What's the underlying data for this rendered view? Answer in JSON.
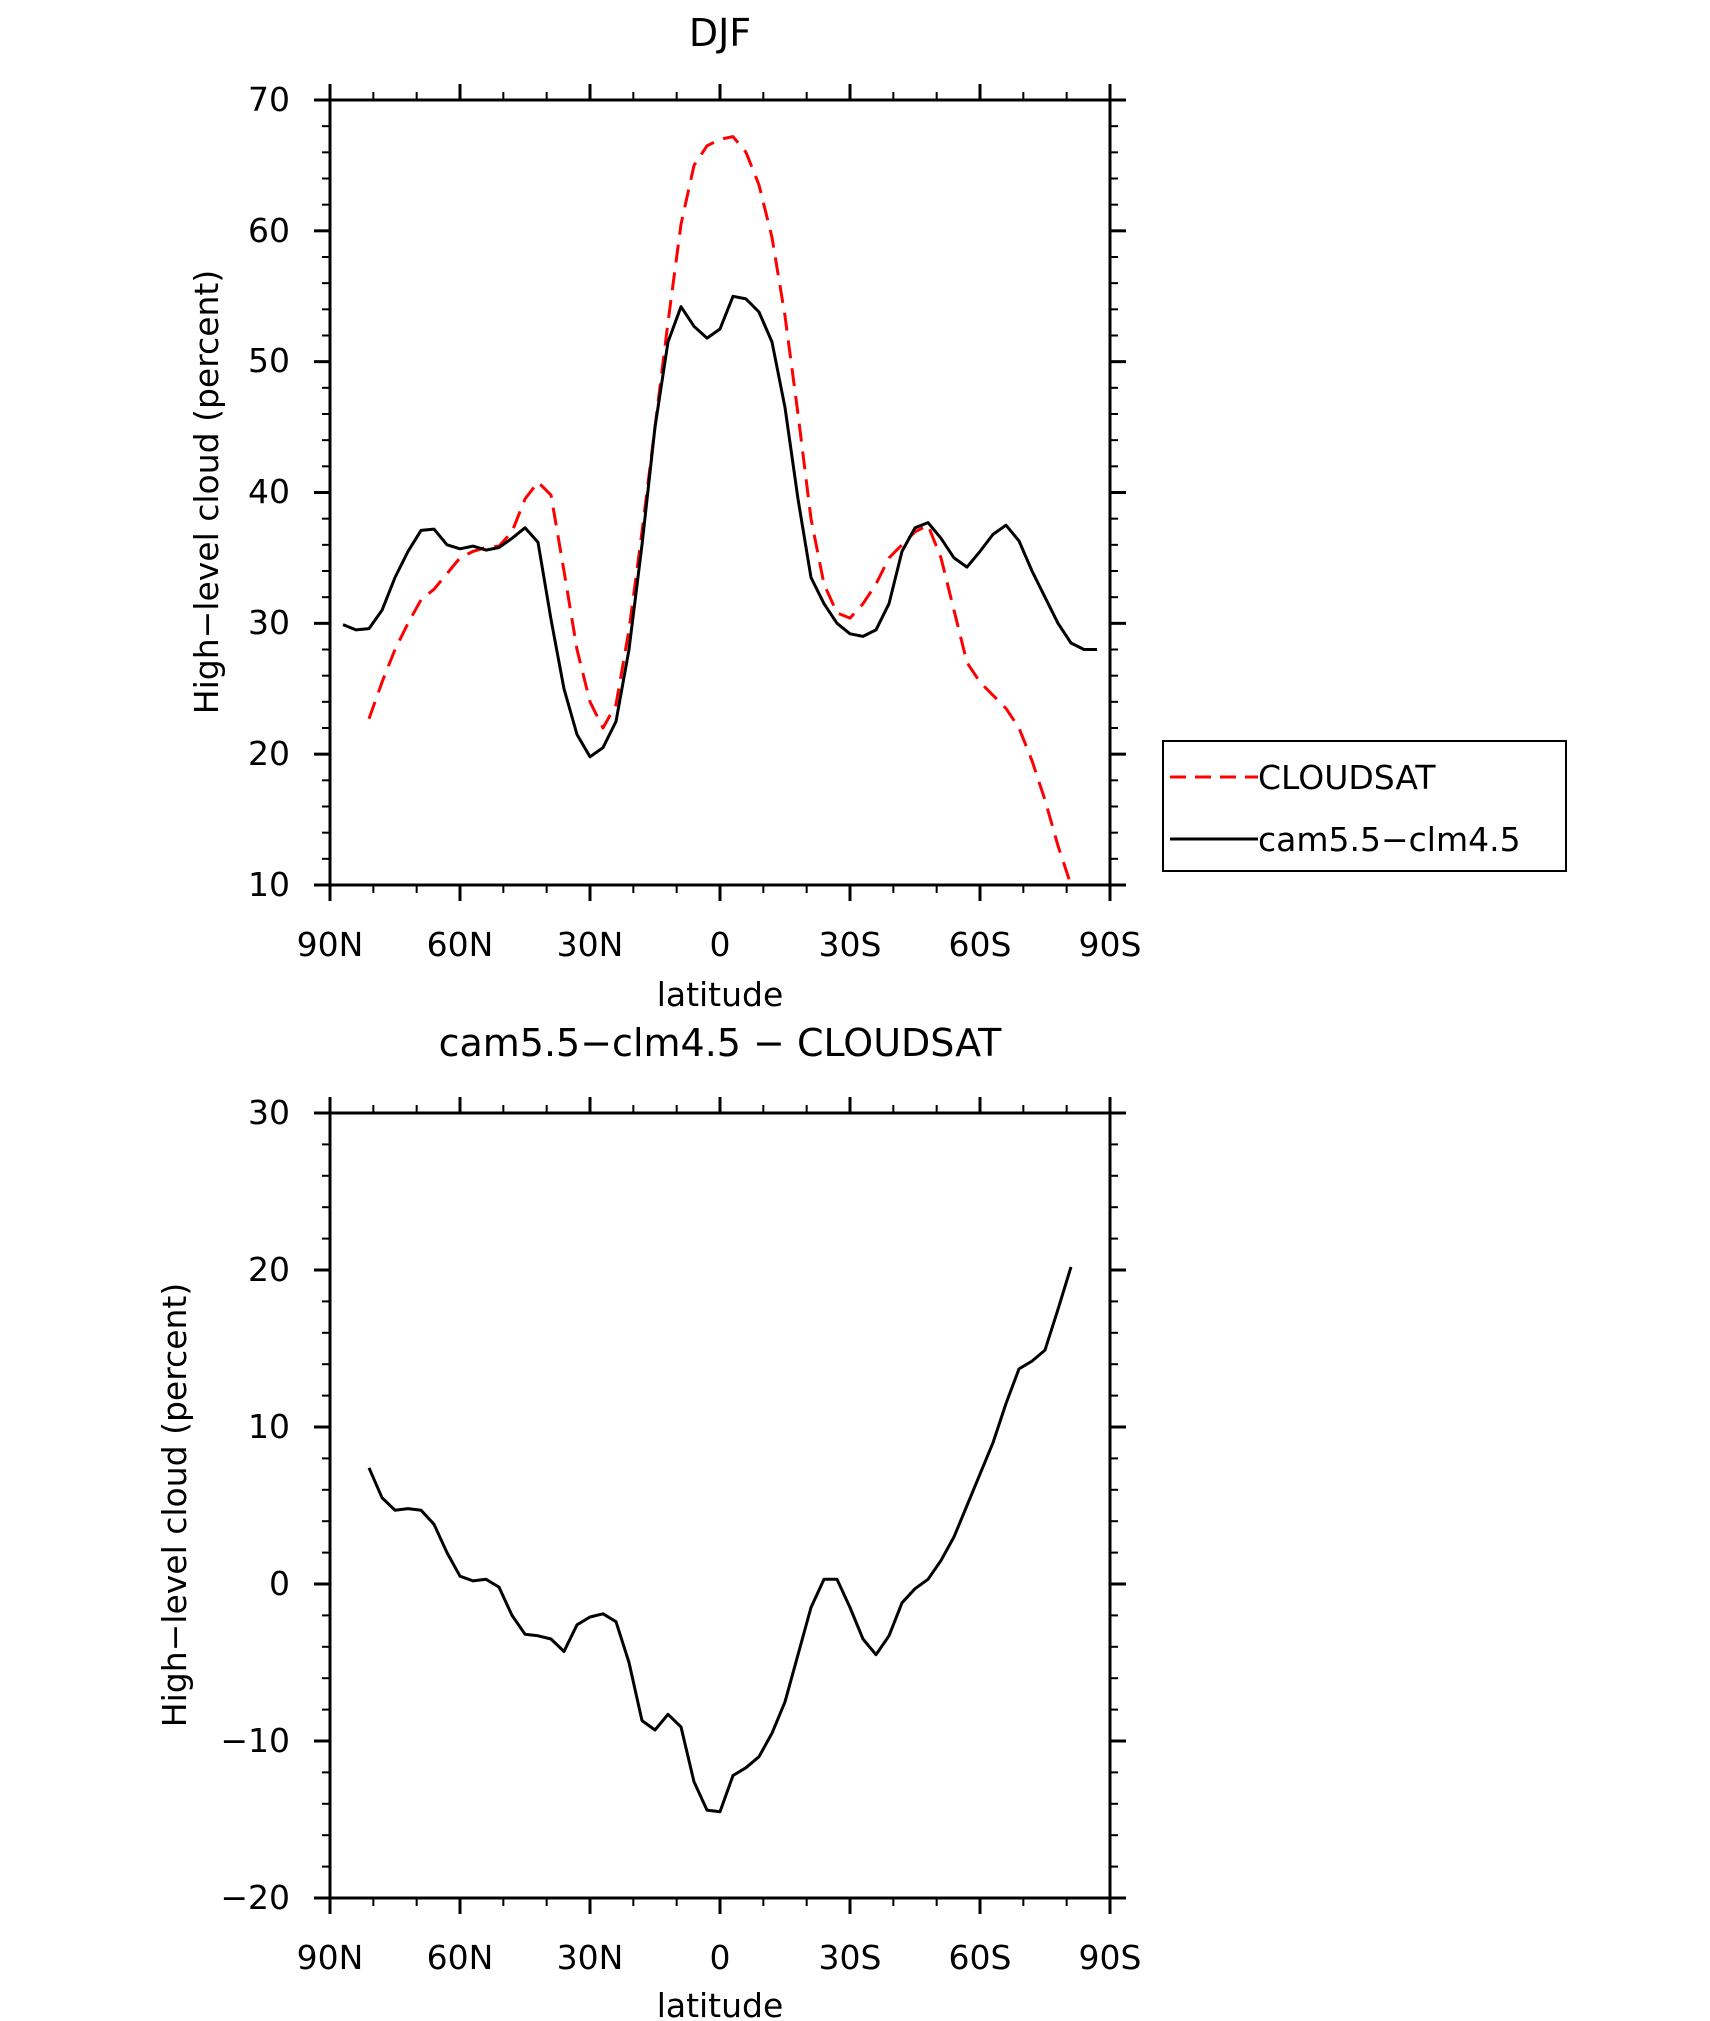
{
  "chart_data": [
    {
      "type": "line",
      "title": "DJF",
      "xlabel": "latitude",
      "ylabel": "High−level cloud (percent)",
      "xlim": [
        -90,
        90
      ],
      "ylim": [
        10,
        70
      ],
      "xticks": [
        -90,
        -60,
        -30,
        0,
        30,
        60,
        90
      ],
      "xtick_labels": [
        "90N",
        "60N",
        "30N",
        "0",
        "30S",
        "60S",
        "90S"
      ],
      "yticks": [
        10,
        20,
        30,
        40,
        50,
        60,
        70
      ],
      "ytick_labels": [
        "10",
        "20",
        "30",
        "40",
        "50",
        "60",
        "70"
      ],
      "grid": false,
      "legend_position": "right-outside",
      "series": [
        {
          "name": "CLOUDSAT",
          "color": "#ff0000",
          "dash": "dashed",
          "x": [
            -81,
            -78,
            -75,
            -72,
            -69,
            -66,
            -63,
            -60,
            -57,
            -54,
            -51,
            -48,
            -45,
            -42,
            -39,
            -36,
            -33,
            -30,
            -27,
            -24,
            -21,
            -18,
            -15,
            -12,
            -9,
            -6,
            -3,
            0,
            3,
            6,
            9,
            12,
            15,
            18,
            21,
            24,
            27,
            30,
            33,
            36,
            39,
            42,
            45,
            48,
            51,
            54,
            57,
            60,
            63,
            66,
            69,
            72,
            75,
            78,
            81
          ],
          "values": [
            22.7,
            25.5,
            28.0,
            30.0,
            31.8,
            32.6,
            33.8,
            35.0,
            35.5,
            35.8,
            35.9,
            37.0,
            39.5,
            40.8,
            39.8,
            34.0,
            28.0,
            24.0,
            22.0,
            23.8,
            29.5,
            37.0,
            45.0,
            53.0,
            60.5,
            65.0,
            66.5,
            67.0,
            67.2,
            66.0,
            63.5,
            59.5,
            53.5,
            46.0,
            38.0,
            33.0,
            30.8,
            30.4,
            31.5,
            33.0,
            35.0,
            36.0,
            37.0,
            37.5,
            35.0,
            31.0,
            27.0,
            25.5,
            24.5,
            23.5,
            22.0,
            19.5,
            16.5,
            13.0,
            10.0
          ]
        },
        {
          "name": "cam5.5−clm4.5",
          "color": "#000000",
          "dash": "solid",
          "x": [
            -87,
            -84,
            -81,
            -78,
            -75,
            -72,
            -69,
            -66,
            -63,
            -60,
            -57,
            -54,
            -51,
            -48,
            -45,
            -42,
            -39,
            -36,
            -33,
            -30,
            -27,
            -24,
            -21,
            -18,
            -15,
            -12,
            -9,
            -6,
            -3,
            0,
            3,
            6,
            9,
            12,
            15,
            18,
            21,
            24,
            27,
            30,
            33,
            36,
            39,
            42,
            45,
            48,
            51,
            54,
            57,
            60,
            63,
            66,
            69,
            72,
            75,
            78,
            81,
            84,
            87
          ],
          "values": [
            29.9,
            29.5,
            29.6,
            31.0,
            33.5,
            35.5,
            37.1,
            37.2,
            36.0,
            35.7,
            35.9,
            35.6,
            35.8,
            36.5,
            37.3,
            36.2,
            30.3,
            25.0,
            21.5,
            19.8,
            20.5,
            22.5,
            28.0,
            36.0,
            45.0,
            51.5,
            54.2,
            52.7,
            51.8,
            52.5,
            55.0,
            54.8,
            53.8,
            51.5,
            46.5,
            39.5,
            33.5,
            31.5,
            30.0,
            29.2,
            29.0,
            29.5,
            31.5,
            35.5,
            37.3,
            37.7,
            36.5,
            35.0,
            34.3,
            35.5,
            36.8,
            37.5,
            36.3,
            34.0,
            32.0,
            30.0,
            28.5,
            28.0,
            28.0
          ]
        }
      ]
    },
    {
      "type": "line",
      "title": "cam5.5−clm4.5 − CLOUDSAT",
      "xlabel": "latitude",
      "ylabel": "High−level cloud (percent)",
      "xlim": [
        -90,
        90
      ],
      "ylim": [
        -20,
        30
      ],
      "xticks": [
        -90,
        -60,
        -30,
        0,
        30,
        60,
        90
      ],
      "xtick_labels": [
        "90N",
        "60N",
        "30N",
        "0",
        "30S",
        "60S",
        "90S"
      ],
      "yticks": [
        -20,
        -10,
        0,
        10,
        20,
        30
      ],
      "ytick_labels": [
        "−20",
        "−10",
        "0",
        "10",
        "20",
        "30"
      ],
      "grid": false,
      "series": [
        {
          "name": "cam5.5−clm4.5 − CLOUDSAT",
          "color": "#000000",
          "dash": "solid",
          "x": [
            -81,
            -78,
            -75,
            -72,
            -69,
            -66,
            -63,
            -60,
            -57,
            -54,
            -51,
            -48,
            -45,
            -42,
            -39,
            -36,
            -33,
            -30,
            -27,
            -24,
            -21,
            -18,
            -15,
            -12,
            -9,
            -6,
            -3,
            0,
            3,
            6,
            9,
            12,
            15,
            18,
            21,
            24,
            27,
            30,
            33,
            36,
            39,
            42,
            45,
            48,
            51,
            54,
            57,
            60,
            63,
            66,
            69,
            72,
            75,
            78,
            81
          ],
          "values": [
            7.4,
            5.5,
            4.7,
            4.8,
            4.7,
            3.8,
            2.0,
            0.5,
            0.2,
            0.3,
            -0.2,
            -2.0,
            -3.2,
            -3.3,
            -3.5,
            -4.3,
            -2.6,
            -2.1,
            -1.9,
            -2.4,
            -5.0,
            -8.7,
            -9.3,
            -8.3,
            -9.1,
            -12.6,
            -14.4,
            -14.5,
            -12.2,
            -11.7,
            -11.0,
            -9.5,
            -7.5,
            -4.5,
            -1.5,
            0.3,
            0.3,
            -1.5,
            -3.5,
            -4.5,
            -3.3,
            -1.2,
            -0.3,
            0.3,
            1.5,
            3.0,
            5.0,
            7.0,
            9.0,
            11.5,
            13.7,
            14.2,
            14.9,
            17.5,
            20.2
          ]
        }
      ]
    }
  ]
}
